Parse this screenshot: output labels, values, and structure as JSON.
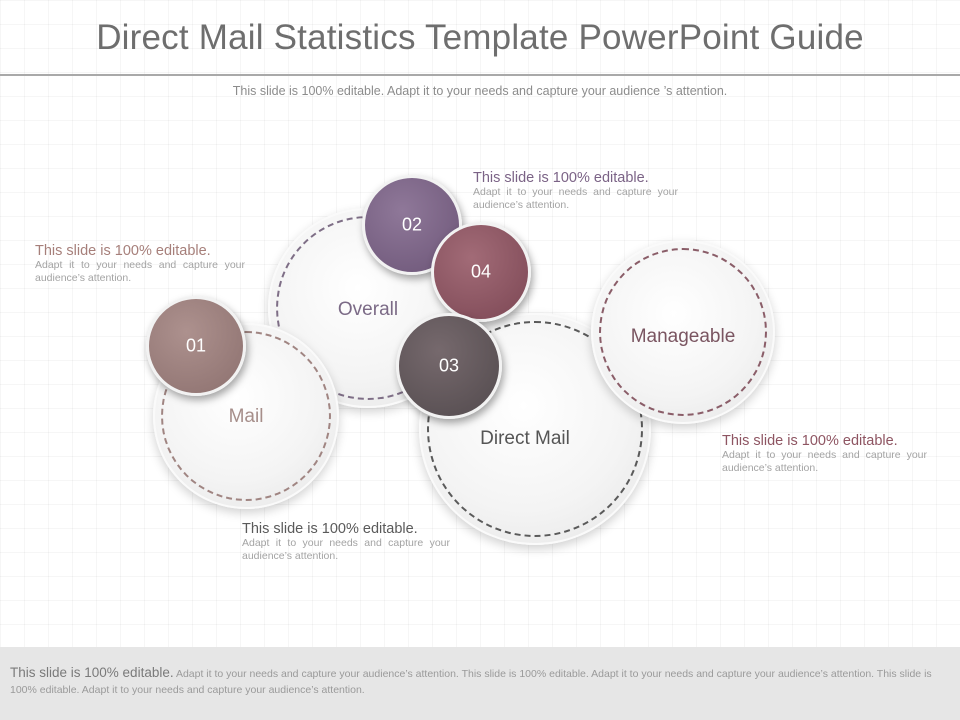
{
  "slide": {
    "title": "Direct Mail Statistics Template PowerPoint Guide",
    "subtitle": "This slide is 100% editable. Adapt it to your needs and capture your  audience ’s attention."
  },
  "bubbles": [
    {
      "label": "Overall",
      "color": "#7b6a86"
    },
    {
      "label": "Mail",
      "color": "#a68e8a"
    },
    {
      "label": "Direct Mail",
      "color": "#555555"
    },
    {
      "label": "Manageable",
      "color": "#7a5561"
    }
  ],
  "badges": [
    {
      "number": "01",
      "color": "#9a7d7b"
    },
    {
      "number": "02",
      "color": "#7b6386"
    },
    {
      "number": "03",
      "color": "#5f5659"
    },
    {
      "number": "04",
      "color": "#8e5562"
    }
  ],
  "notes": [
    {
      "heading": "This slide is 100% editable.",
      "body": "Adapt it to your needs and capture your audience’s attention.",
      "color": "#a67f7a"
    },
    {
      "heading": "This slide is 100% editable.",
      "body": "Adapt it to your needs and capture your audience’s attention.",
      "color": "#7b6386"
    },
    {
      "heading": "This slide is 100% editable.",
      "body": "Adapt it to your needs and capture your audience’s attention.",
      "color": "#5a5a5a"
    },
    {
      "heading": "This slide is 100% editable.",
      "body": "Adapt it to your needs and capture your audience’s attention.",
      "color": "#8e5562"
    }
  ],
  "footer": {
    "heading": "This slide is 100% editable.",
    "body": "Adapt it to your needs and capture your audience’s attention. This slide is 100% editable. Adapt it to your needs and capture your audience’s attention. This slide is 100% editable. Adapt it to your needs and capture your audience’s attention."
  }
}
